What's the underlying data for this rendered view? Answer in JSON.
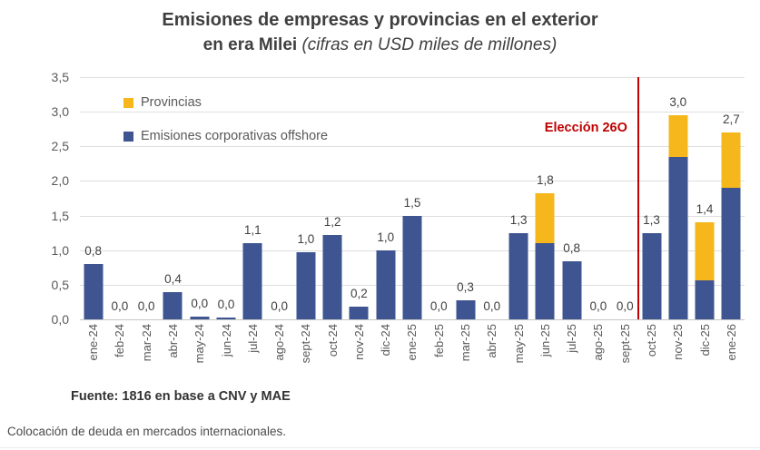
{
  "title": {
    "line1": "Emisiones de empresas y provincias en el exterior",
    "line2_bold": "en era Milei",
    "line2_italic": "(cifras en USD miles de millones)"
  },
  "legend": {
    "items": [
      {
        "label": "Provincias",
        "color": "#F6B71D"
      },
      {
        "label": "Emisiones corporativas offshore",
        "color": "#3F5591"
      }
    ]
  },
  "annotation": {
    "text": "Elección 26O",
    "color": "#C00000",
    "after_category": "sept-25"
  },
  "source": "Fuente: 1816 en base a CNV y MAE",
  "caption": "Colocación de deuda en mercados internacionales.",
  "chart_data": {
    "type": "bar",
    "stacked": true,
    "title": "Emisiones de empresas y provincias en el exterior en era Milei (cifras en USD miles de millones)",
    "xlabel": "",
    "ylabel": "",
    "ylim": [
      0,
      3.5
    ],
    "ytick_step": 0.5,
    "ytick_labels": [
      "0,0",
      "0,5",
      "1,0",
      "1,5",
      "2,0",
      "2,5",
      "3,0",
      "3,5"
    ],
    "grid": true,
    "legend_position": "top-left",
    "categories": [
      "ene-24",
      "feb-24",
      "mar-24",
      "abr-24",
      "may-24",
      "jun-24",
      "jul-24",
      "ago-24",
      "sept-24",
      "oct-24",
      "nov-24",
      "dic-24",
      "ene-25",
      "feb-25",
      "mar-25",
      "abr-25",
      "may-25",
      "jun-25",
      "jul-25",
      "ago-25",
      "sept-25",
      "oct-25",
      "nov-25",
      "dic-25",
      "ene-26"
    ],
    "series": [
      {
        "name": "Emisiones corporativas offshore",
        "color": "#3F5591",
        "values": [
          0.8,
          0,
          0,
          0.4,
          0.04,
          0.02,
          1.1,
          0,
          0.97,
          1.22,
          0.18,
          1.0,
          1.5,
          0,
          0.28,
          0,
          1.25,
          1.1,
          0.84,
          0,
          0,
          1.25,
          2.35,
          0.57,
          1.9
        ]
      },
      {
        "name": "Provincias",
        "color": "#F6B71D",
        "values": [
          0,
          0,
          0,
          0,
          0,
          0,
          0,
          0,
          0,
          0,
          0,
          0,
          0,
          0,
          0,
          0,
          0,
          0.72,
          0,
          0,
          0,
          0,
          0.6,
          0.83,
          0.8
        ]
      }
    ],
    "total_labels": [
      "0,8",
      "0,0",
      "0,0",
      "0,4",
      "0,0",
      "0,0",
      "1,1",
      "0,0",
      "1,0",
      "1,2",
      "0,2",
      "1,0",
      "1,5",
      "0,0",
      "0,3",
      "0,0",
      "1,3",
      "1,8",
      "0,8",
      "0,0",
      "0,0",
      "1,3",
      "3,0",
      "1,4",
      "2,7"
    ]
  }
}
